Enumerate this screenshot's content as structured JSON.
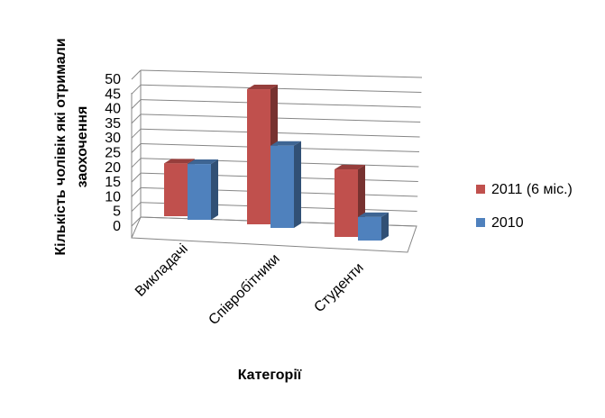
{
  "chart_data": {
    "type": "bar",
    "categories": [
      "Викладачі",
      "Співробітники",
      "Студенти"
    ],
    "series": [
      {
        "name": "2011 (6 міс.)",
        "values": [
          18,
          46,
          23
        ],
        "color": "#c0504d"
      },
      {
        "name": "2010",
        "values": [
          19,
          28,
          8
        ],
        "color": "#4f81bd"
      }
    ],
    "title": "",
    "xlabel": "Категорії",
    "ylabel_lines": [
      "Кількість чолівік які отримали",
      "заохочення"
    ],
    "ylim": [
      0,
      50
    ],
    "yticks": [
      0,
      5,
      10,
      15,
      20,
      25,
      30,
      35,
      40,
      45,
      50
    ],
    "grid": true,
    "legend_position": "right",
    "style": "3d-clustered-column"
  }
}
